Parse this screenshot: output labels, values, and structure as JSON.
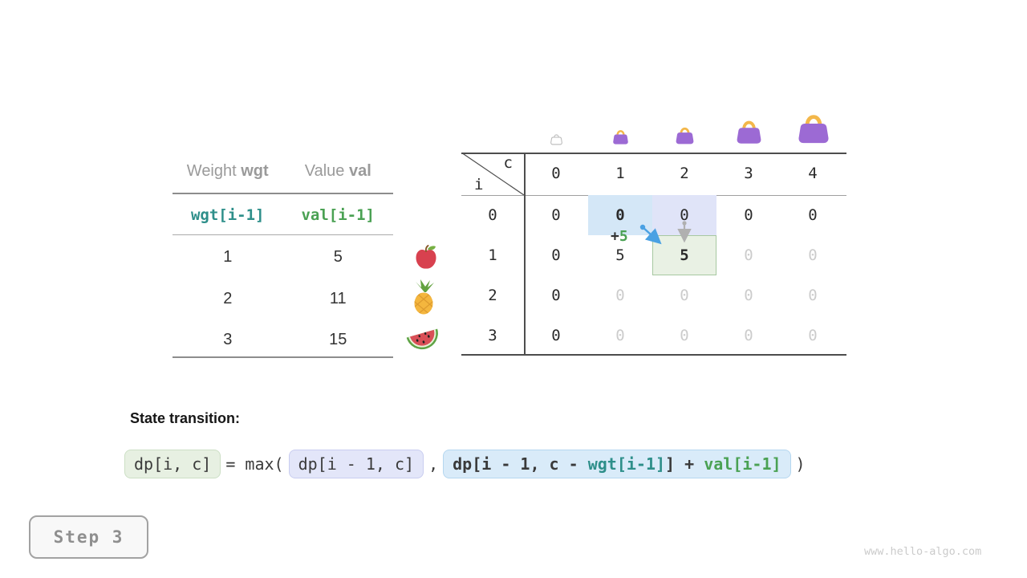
{
  "items_table": {
    "col1_header": {
      "regular": "Weight ",
      "bold": "wgt"
    },
    "col2_header": {
      "regular": "Value ",
      "bold": "val"
    },
    "code_row": {
      "wgt": "wgt[i-1]",
      "val": "val[i-1]"
    },
    "rows": [
      {
        "weight": "1",
        "value": "5",
        "icon": "apple-icon"
      },
      {
        "weight": "2",
        "value": "11",
        "icon": "pineapple-icon"
      },
      {
        "weight": "3",
        "value": "15",
        "icon": "watermelon-icon"
      }
    ]
  },
  "dp_table": {
    "corner": {
      "col_var": "c",
      "row_var": "i"
    },
    "col_headers": [
      "0",
      "1",
      "2",
      "3",
      "4"
    ],
    "row_headers": [
      "0",
      "1",
      "2",
      "3"
    ],
    "cells": [
      [
        {
          "v": "0"
        },
        {
          "v": "0",
          "bold": true,
          "bg": "blue"
        },
        {
          "v": "0",
          "bg": "lavender"
        },
        {
          "v": "0"
        },
        {
          "v": "0"
        }
      ],
      [
        {
          "v": "0"
        },
        {
          "v": "5"
        },
        {
          "v": "5",
          "bold": true,
          "bg": "green"
        },
        {
          "v": "0",
          "gray": true
        },
        {
          "v": "0",
          "gray": true
        }
      ],
      [
        {
          "v": "0"
        },
        {
          "v": "0",
          "gray": true
        },
        {
          "v": "0",
          "gray": true
        },
        {
          "v": "0",
          "gray": true
        },
        {
          "v": "0",
          "gray": true
        }
      ],
      [
        {
          "v": "0"
        },
        {
          "v": "0",
          "gray": true
        },
        {
          "v": "0",
          "gray": true
        },
        {
          "v": "0",
          "gray": true
        },
        {
          "v": "0",
          "gray": true
        }
      ]
    ],
    "annotation": {
      "plus": "+",
      "value": "5"
    },
    "bags": [
      "empty-bag-icon",
      "bag-capacity-1-icon",
      "bag-capacity-2-icon",
      "bag-capacity-3-icon",
      "bag-capacity-4-icon"
    ]
  },
  "transition": {
    "label": "State transition:",
    "lhs": "dp[i, c]",
    "equals": "= max(",
    "option1": "dp[i - 1, c]",
    "comma": ",",
    "option2_parts": {
      "prefix": "dp[i - 1, c - ",
      "wgt": "wgt[i-1]",
      "middle": "] + ",
      "val": "val[i-1]"
    },
    "close": ")"
  },
  "step_badge": "Step 3",
  "watermark": "www.hello-algo.com",
  "colors": {
    "table-line-dark": "#4d4d4d",
    "table-line-light": "#a0a0a0",
    "items-line": "#8d8d8d",
    "header-gray": "#9a9a9a",
    "dim-gray": "#cccccc",
    "teal": "#2e8f8a",
    "green": "#4aa153",
    "highlight-blue": "#d4e7f7",
    "highlight-lavender": "#e0e4f8",
    "highlight-green": "#e9f1e4",
    "highlight-green-border": "#a7c8a1",
    "pill-green-bg": "#e7f0e2",
    "pill-green-border": "#ccdfc5",
    "pill-lavender-bg": "#e3e6f9",
    "pill-lavender-border": "#c9cdf0",
    "pill-blue-bg": "#d9ebf9",
    "pill-blue-border": "#b5d7f0",
    "arrow-blue": "#4aa1e3",
    "arrow-gray": "#b0b0b0",
    "bag-purple": "#9c6ad4",
    "bag-handle": "#f3b74a",
    "badge-gray": "#8f8f8f",
    "watermark-gray": "#cbcbcb"
  }
}
